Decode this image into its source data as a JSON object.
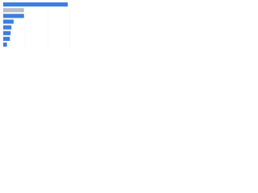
{
  "chart_data": {
    "type": "bar",
    "orientation": "horizontal",
    "categories": [
      null,
      null,
      null,
      null,
      null,
      null,
      null,
      null
    ],
    "values": [
      87,
      28,
      28,
      14,
      11,
      10,
      9,
      5
    ],
    "colors": [
      "#3d7fdc",
      "#b7bcc6",
      "#3d7fdc",
      "#3d7fdc",
      "#3d7fdc",
      "#3d7fdc",
      "#3d7fdc",
      "#3d7fdc"
    ],
    "xlim": [
      0,
      100
    ],
    "xticks": [
      0,
      30,
      60,
      90
    ],
    "grid": true
  }
}
